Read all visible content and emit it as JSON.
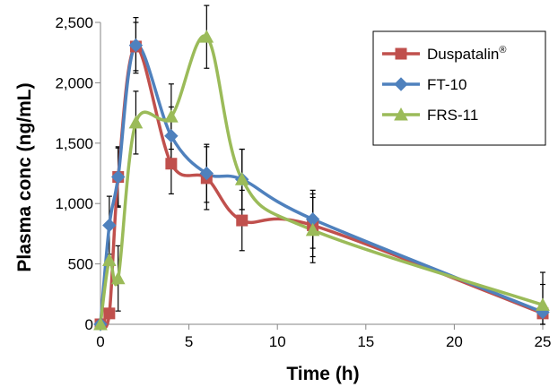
{
  "chart_data": {
    "type": "line",
    "xlabel": "Time (h)",
    "ylabel": "Plasma conc (ng/mL)",
    "xlim": [
      0,
      25
    ],
    "ylim": [
      0,
      2500
    ],
    "x_ticks": [
      "0",
      "5",
      "10",
      "15",
      "20",
      "25"
    ],
    "y_ticks": [
      "0",
      "500",
      "1,000",
      "1,500",
      "2,000",
      "2,500"
    ],
    "grid": false,
    "legend_position": "top-right",
    "series": [
      {
        "name": "Duspatalin",
        "name_sup": "®",
        "color": "#c0504d",
        "marker": "square",
        "x": [
          0,
          0.5,
          1,
          2,
          4,
          6,
          8,
          12,
          25
        ],
        "y": [
          0,
          90,
          1220,
          2300,
          1330,
          1210,
          860,
          820,
          90
        ],
        "err": [
          0,
          0,
          250,
          200,
          250,
          260,
          250,
          260,
          240
        ]
      },
      {
        "name": "FT-10",
        "color": "#4f81bd",
        "marker": "diamond",
        "x": [
          0,
          0.5,
          1,
          2,
          4,
          6,
          8,
          12,
          25
        ],
        "y": [
          0,
          820,
          1220,
          2310,
          1560,
          1250,
          1200,
          870,
          100
        ],
        "err": [
          0,
          240,
          240,
          230,
          240,
          240,
          250,
          240,
          0
        ]
      },
      {
        "name": "FRS-11",
        "color": "#9bbb59",
        "marker": "triangle",
        "x": [
          0,
          0.5,
          1,
          2,
          4,
          6,
          8,
          12,
          25
        ],
        "y": [
          0,
          530,
          380,
          1670,
          1720,
          2380,
          1200,
          780,
          160
        ],
        "err": [
          0,
          0,
          270,
          260,
          270,
          260,
          250,
          270,
          270
        ]
      }
    ]
  }
}
